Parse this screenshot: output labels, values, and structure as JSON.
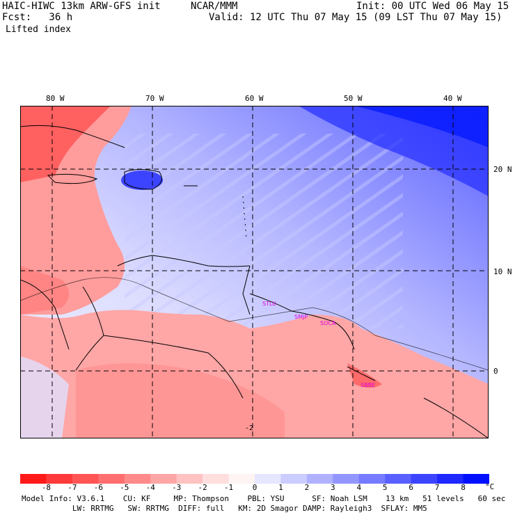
{
  "header": {
    "model": "HAIC-HIWC 13km ARW-GFS init",
    "org": "NCAR/MMM",
    "init": "Init: 00 UTC Wed 06 May 15",
    "fcst": "Fcst:   36 h",
    "valid": "Valid: 12 UTC Thu 07 May 15 (09 LST Thu 07 May 15)",
    "field": "Lifted index"
  },
  "map": {
    "lon_labels": [
      "80 W",
      "70 W",
      "60 W",
      "50 W",
      "40 W"
    ],
    "lat_labels": [
      "20 N",
      "10 N",
      "0"
    ],
    "stations": [
      "STLU",
      "SMJP",
      "SOCA",
      "SBBE"
    ],
    "contour_labels": [
      "-2"
    ]
  },
  "colorbar": {
    "labels": [
      "-8",
      "-7",
      "-6",
      "-5",
      "-4",
      "-3",
      "-2",
      "-1",
      "0",
      "1",
      "2",
      "3",
      "4",
      "5",
      "6",
      "7",
      "8"
    ],
    "unit": "°C",
    "colors": [
      "#ff1a1a",
      "#ff3a3a",
      "#ff5555",
      "#ff6f6f",
      "#ff8a8a",
      "#ffa6a6",
      "#ffc2c2",
      "#ffdede",
      "#fff4f4",
      "#e6e6ff",
      "#cccdff",
      "#b0b2ff",
      "#9396ff",
      "#777bff",
      "#5a60ff",
      "#3c44ff",
      "#1e28ff",
      "#0010ff"
    ]
  },
  "footer": {
    "line1": "Model Info: V3.6.1    CU: KF     MP: Thompson    PBL: YSU      SF: Noah LSM    13 km   51 levels   60 sec",
    "line2": "           LW: RRTMG   SW: RRTMG  DIFF: full   KM: 2D Smagor DAMP: Rayleigh3  SFLAY: MM5"
  }
}
